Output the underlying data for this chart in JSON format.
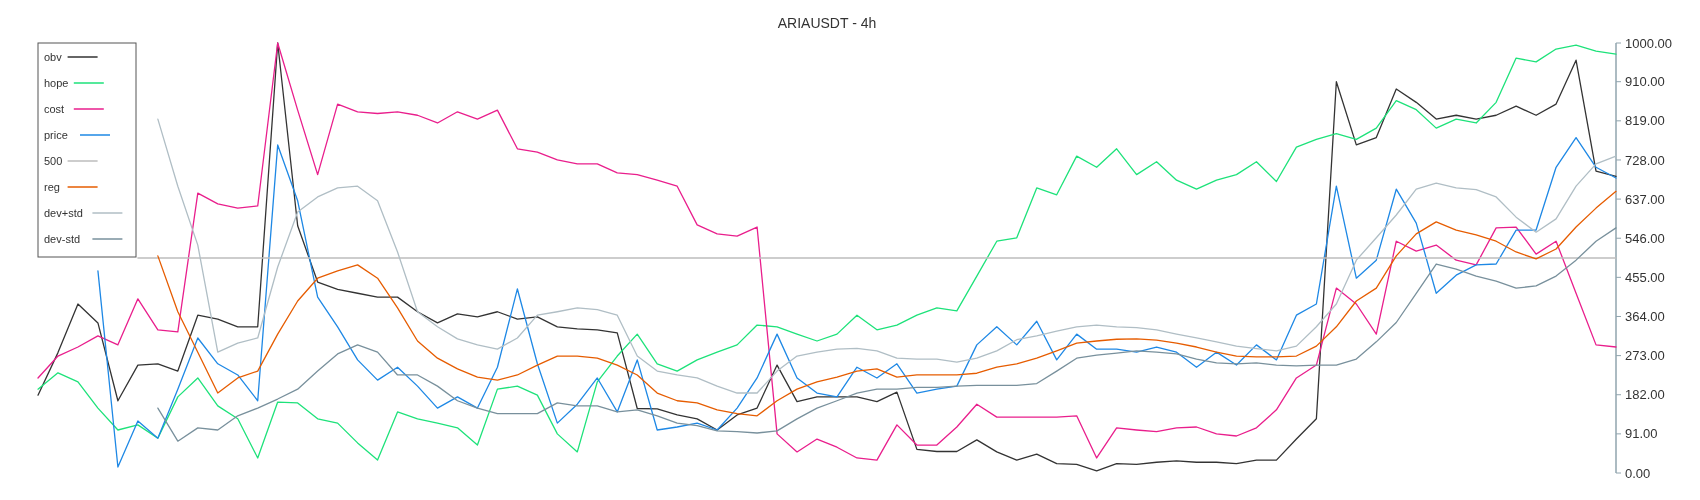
{
  "chart_data": {
    "type": "line",
    "title": "ARIAUSDT - 4h",
    "categories": [
      null,
      null,
      null,
      null,
      null,
      null,
      null,
      null,
      null,
      null,
      null,
      null,
      null,
      null,
      null,
      null,
      null,
      null,
      null,
      null,
      null,
      null,
      null,
      null,
      null,
      null,
      null,
      null,
      null,
      null,
      null,
      null,
      null,
      null,
      null,
      null,
      null,
      null,
      null,
      null,
      null,
      null,
      null,
      null,
      null,
      null,
      null,
      null,
      null,
      null,
      null,
      null,
      null,
      null,
      null,
      null,
      null,
      null,
      null,
      null,
      null,
      null,
      null,
      null,
      null,
      null,
      null,
      null,
      null,
      null,
      null,
      null,
      null,
      null,
      null,
      null,
      null,
      null,
      null,
      null
    ],
    "ylim": [
      0,
      1000
    ],
    "yticks": [
      {
        "value": 0,
        "label": "0.00"
      },
      {
        "value": 91,
        "label": "91.00"
      },
      {
        "value": 182,
        "label": "182.00"
      },
      {
        "value": 273,
        "label": "273.00"
      },
      {
        "value": 364,
        "label": "364.00"
      },
      {
        "value": 455,
        "label": "455.00"
      },
      {
        "value": 546,
        "label": "546.00"
      },
      {
        "value": 637,
        "label": "637.00"
      },
      {
        "value": 728,
        "label": "728.00"
      },
      {
        "value": 819,
        "label": "819.00"
      },
      {
        "value": 910,
        "label": "910.00"
      },
      {
        "value": 1000,
        "label": "1000.00"
      }
    ],
    "grid": false,
    "legend": "top left",
    "marker": "none",
    "line_style": "solid",
    "series": [
      {
        "name": "obv",
        "color": "#333333",
        "values": [
          181,
          280,
          393,
          349,
          168,
          251,
          254,
          237,
          367,
          358,
          340,
          340,
          1000,
          575,
          444,
          427,
          418,
          409,
          409,
          375,
          349,
          370,
          363,
          375,
          358,
          363,
          340,
          335,
          333,
          326,
          150,
          149,
          135,
          126,
          100,
          135,
          151,
          251,
          166,
          177,
          177,
          177,
          166,
          188,
          55,
          50,
          50,
          77,
          49,
          30,
          44,
          22,
          20,
          5,
          22,
          20,
          25,
          28,
          25,
          25,
          22,
          30,
          30,
          79,
          126,
          910,
          763,
          780,
          893,
          862,
          823,
          832,
          823,
          832,
          853,
          832,
          858,
          960,
          702,
          690
        ]
      },
      {
        "name": "hope",
        "color": "#1de27a",
        "values": [
          195,
          233,
          212,
          151,
          100,
          112,
          81,
          177,
          221,
          156,
          126,
          35,
          165,
          163,
          126,
          116,
          70,
          30,
          142,
          126,
          116,
          105,
          65,
          195,
          202,
          181,
          91,
          49,
          212,
          272,
          323,
          254,
          237,
          263,
          281,
          298,
          344,
          340,
          323,
          307,
          323,
          367,
          333,
          344,
          367,
          384,
          377,
          458,
          539,
          547,
          663,
          647,
          737,
          711,
          754,
          694,
          724,
          681,
          660,
          681,
          694,
          724,
          678,
          758,
          776,
          789,
          776,
          802,
          866,
          845,
          802,
          823,
          814,
          862,
          965,
          956,
          986,
          995,
          981,
          974
        ]
      },
      {
        "name": "cost",
        "color": "#e91e8c",
        "values": [
          221,
          272,
          293,
          319,
          298,
          405,
          333,
          328,
          651,
          626,
          616,
          621,
          1000,
          844,
          694,
          858,
          840,
          836,
          840,
          832,
          814,
          840,
          823,
          844,
          754,
          746,
          728,
          719,
          719,
          698,
          694,
          681,
          667,
          577,
          556,
          551,
          572,
          91,
          49,
          79,
          60,
          35,
          30,
          112,
          65,
          65,
          107,
          160,
          130,
          130,
          130,
          130,
          133,
          35,
          105,
          100,
          96,
          105,
          107,
          91,
          86,
          105,
          147,
          221,
          251,
          430,
          393,
          323,
          539,
          516,
          530,
          495,
          484,
          570,
          572,
          509,
          539,
          418,
          298,
          293
        ]
      },
      {
        "name": "price",
        "color": "#1e88e5",
        "values": [
          null,
          null,
          null,
          470,
          14,
          121,
          81,
          195,
          314,
          254,
          228,
          168,
          763,
          633,
          409,
          340,
          263,
          216,
          246,
          202,
          151,
          177,
          151,
          246,
          428,
          254,
          116,
          160,
          221,
          142,
          263,
          100,
          107,
          116,
          100,
          151,
          221,
          323,
          221,
          186,
          177,
          246,
          221,
          254,
          186,
          195,
          202,
          298,
          340,
          298,
          353,
          263,
          323,
          288,
          288,
          281,
          293,
          281,
          246,
          281,
          251,
          298,
          263,
          367,
          393,
          667,
          453,
          495,
          660,
          581,
          418,
          460,
          484,
          486,
          565,
          565,
          711,
          780,
          711,
          686
        ]
      },
      {
        "name": "500",
        "color": "#bdbdbd",
        "values": [
          null,
          null,
          null,
          null,
          null,
          500,
          500,
          500,
          500,
          500,
          500,
          500,
          500,
          500,
          500,
          500,
          500,
          500,
          500,
          500,
          500,
          500,
          500,
          500,
          500,
          500,
          500,
          500,
          500,
          500,
          500,
          500,
          500,
          500,
          500,
          500,
          500,
          500,
          500,
          500,
          500,
          500,
          500,
          500,
          500,
          500,
          500,
          500,
          500,
          500,
          500,
          500,
          500,
          500,
          500,
          500,
          500,
          500,
          500,
          500,
          500,
          500,
          500,
          500,
          500,
          500,
          500,
          500,
          500,
          500,
          500,
          500,
          500,
          500,
          500,
          500,
          500,
          500,
          500,
          500
        ]
      },
      {
        "name": "reg",
        "color": "#e65c00",
        "values": [
          null,
          null,
          null,
          null,
          null,
          null,
          505,
          375,
          281,
          186,
          221,
          237,
          323,
          400,
          453,
          470,
          484,
          453,
          384,
          307,
          267,
          242,
          223,
          216,
          228,
          251,
          272,
          272,
          267,
          251,
          228,
          186,
          168,
          163,
          147,
          138,
          133,
          168,
          195,
          212,
          223,
          237,
          242,
          223,
          228,
          228,
          228,
          232,
          246,
          254,
          267,
          284,
          302,
          307,
          311,
          312,
          309,
          302,
          293,
          281,
          272,
          270,
          270,
          272,
          295,
          340,
          400,
          430,
          505,
          556,
          584,
          565,
          554,
          539,
          514,
          498,
          521,
          572,
          616,
          655
        ]
      },
      {
        "name": "dev+std",
        "color": "#b0bec5",
        "values": [
          null,
          null,
          null,
          null,
          null,
          null,
          823,
          667,
          530,
          281,
          302,
          314,
          479,
          607,
          642,
          663,
          667,
          633,
          514,
          375,
          340,
          312,
          298,
          288,
          314,
          367,
          375,
          384,
          380,
          367,
          272,
          237,
          228,
          221,
          202,
          186,
          186,
          237,
          272,
          281,
          288,
          290,
          284,
          267,
          265,
          265,
          258,
          267,
          284,
          310,
          319,
          330,
          340,
          344,
          340,
          338,
          333,
          323,
          314,
          305,
          295,
          289,
          284,
          295,
          340,
          393,
          495,
          547,
          600,
          660,
          674,
          663,
          659,
          642,
          595,
          560,
          591,
          667,
          719,
          737
        ]
      },
      {
        "name": "dev-std",
        "color": "#78909c",
        "values": [
          null,
          null,
          null,
          null,
          null,
          null,
          151,
          74,
          105,
          100,
          133,
          151,
          172,
          195,
          237,
          277,
          298,
          281,
          228,
          228,
          202,
          168,
          151,
          138,
          138,
          138,
          163,
          156,
          156,
          142,
          147,
          133,
          116,
          110,
          98,
          96,
          93,
          98,
          126,
          151,
          168,
          186,
          195,
          195,
          199,
          199,
          202,
          204,
          204,
          204,
          208,
          237,
          267,
          274,
          279,
          284,
          281,
          277,
          265,
          256,
          254,
          256,
          251,
          249,
          251,
          251,
          265,
          305,
          350,
          418,
          486,
          474,
          458,
          446,
          430,
          435,
          458,
          495,
          539,
          570
        ]
      }
    ]
  }
}
